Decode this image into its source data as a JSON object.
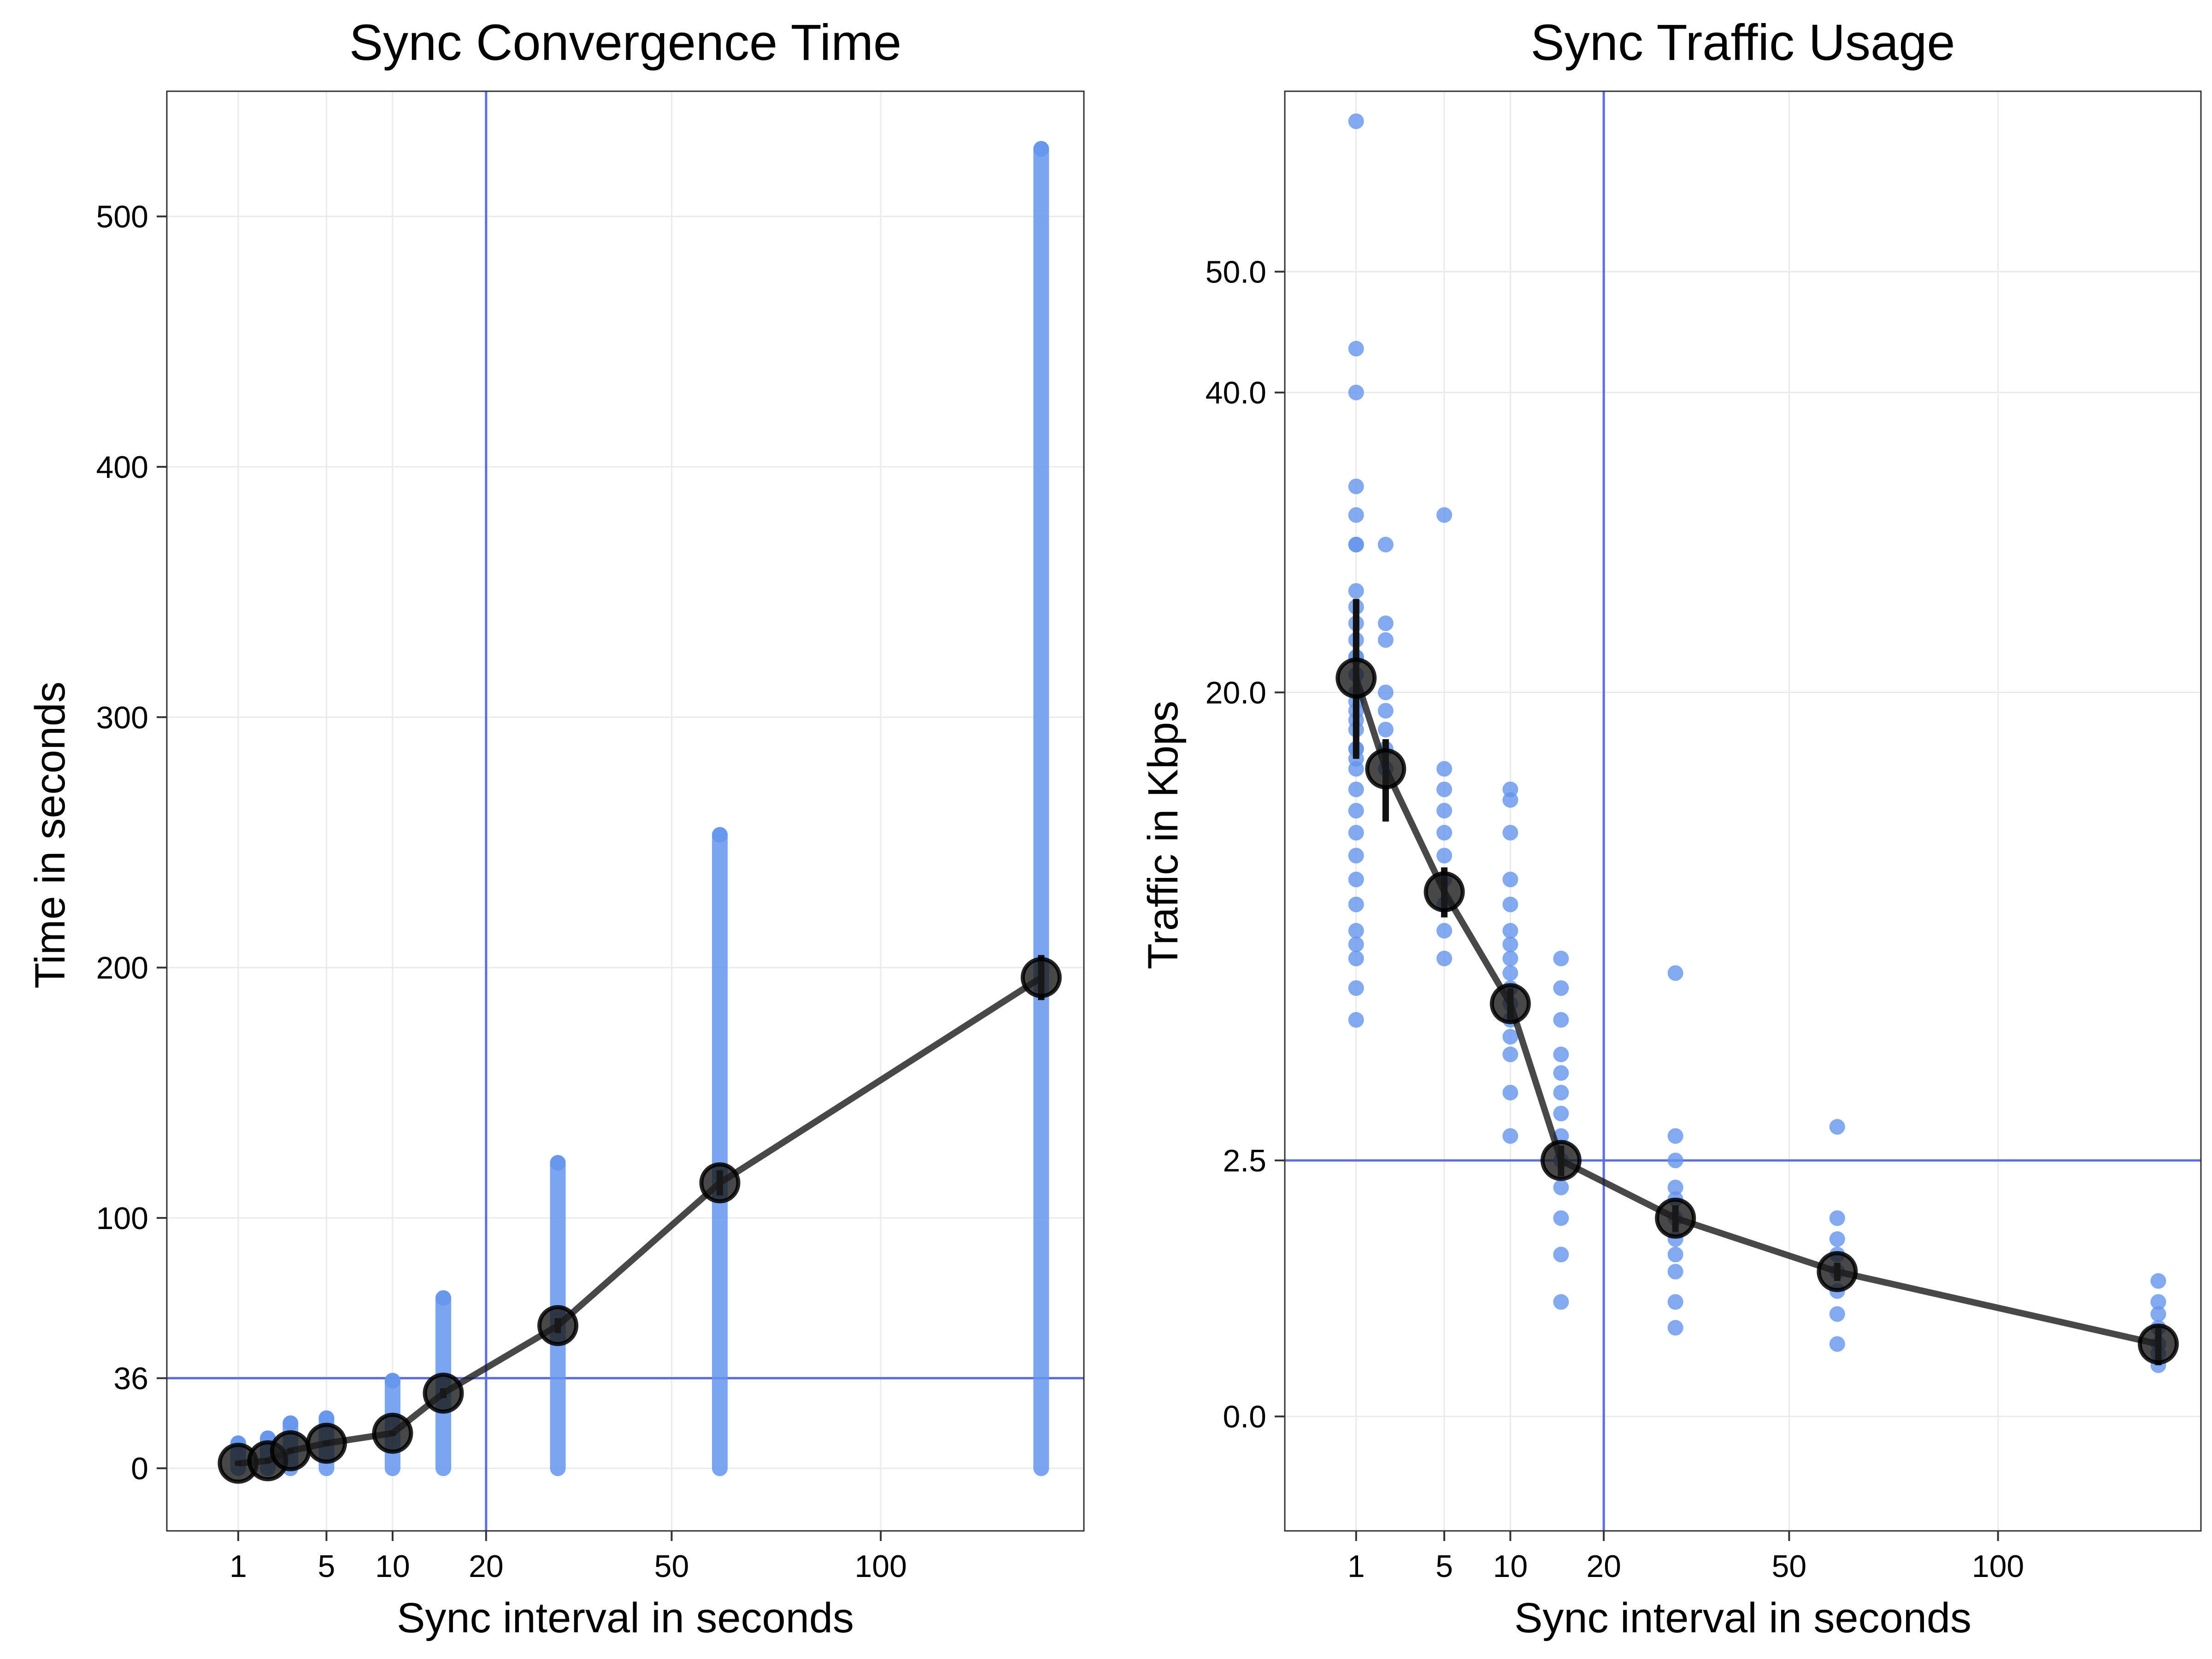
{
  "chart_data": [
    {
      "type": "scatter",
      "title": "Sync Convergence Time",
      "xlabel": "Sync interval in seconds",
      "ylabel": "Time in seconds",
      "xscale": "sqrt",
      "xlim": [
        0,
        165
      ],
      "ylim": [
        -25,
        550
      ],
      "x_ticks": [
        1,
        5,
        10,
        20,
        50,
        100
      ],
      "x_tick_labels": [
        "1",
        "5",
        "10",
        "20",
        "50",
        "100"
      ],
      "y_ticks": [
        0,
        36,
        100,
        200,
        300,
        400,
        500
      ],
      "y_tick_labels": [
        "0",
        "36",
        "100",
        "200",
        "300",
        "400",
        "500"
      ],
      "grid": true,
      "reference_lines": {
        "vertical_x": 20,
        "horizontal_y": 36,
        "color": "#5B6BEA"
      },
      "point_color": "#6495ED",
      "mean_color": "#1a1a1a",
      "series": [
        {
          "values": [
            {
              "x": 1,
              "min": 0,
              "max": 10
            },
            {
              "x": 2,
              "min": 0,
              "max": 12
            },
            {
              "x": 3,
              "min": 0,
              "max": 18
            },
            {
              "x": 5,
              "min": 0,
              "max": 20
            },
            {
              "x": 10,
              "min": 0,
              "max": 35
            },
            {
              "x": 15,
              "min": 0,
              "max": 68
            },
            {
              "x": 30,
              "min": 0,
              "max": 122
            },
            {
              "x": 60,
              "min": 0,
              "max": 253
            },
            {
              "x": 150,
              "min": 0,
              "max": 527
            }
          ]
        },
        {
          "values": [
            {
              "x": 1,
              "y": 2,
              "se": 1
            },
            {
              "x": 2,
              "y": 3,
              "se": 1
            },
            {
              "x": 3,
              "y": 7,
              "se": 1
            },
            {
              "x": 5,
              "y": 10,
              "se": 1
            },
            {
              "x": 10,
              "y": 14,
              "se": 1
            },
            {
              "x": 15,
              "y": 30,
              "se": 2
            },
            {
              "x": 30,
              "y": 57,
              "se": 3
            },
            {
              "x": 60,
              "y": 114,
              "se": 5
            },
            {
              "x": 150,
              "y": 196,
              "se": 9
            }
          ]
        }
      ]
    },
    {
      "type": "scatter",
      "title": "Sync Traffic Usage",
      "xlabel": "Sync interval in seconds",
      "ylabel": "Traffic in Kbps",
      "xscale": "sqrt",
      "yscale": "sqrt",
      "xlim": [
        0,
        165
      ],
      "ylim": [
        -0.5,
        67
      ],
      "x_ticks": [
        1,
        5,
        10,
        20,
        50,
        100
      ],
      "x_tick_labels": [
        "1",
        "5",
        "10",
        "20",
        "50",
        "100"
      ],
      "y_ticks": [
        0,
        2.5,
        20,
        40,
        50
      ],
      "y_tick_labels": [
        "0.0",
        "2.5",
        "20.0",
        "40.0",
        "50.0"
      ],
      "grid": true,
      "reference_lines": {
        "vertical_x": 20,
        "horizontal_y": 2.5,
        "color": "#5B6BEA"
      },
      "point_color": "#6495ED",
      "mean_color": "#1a1a1a",
      "series": [
        {
          "values": [
            {
              "x": 1,
              "points": [
                64,
                43.5,
                40,
                33,
                31,
                29,
                29,
                26,
                25,
                24,
                23,
                22,
                22,
                21,
                20,
                19.5,
                19,
                18.5,
                18,
                17,
                17,
                16.5,
                16,
                15,
                14,
                13,
                12,
                11,
                10,
                9,
                8.5,
                8,
                7,
                6
              ]
            },
            {
              "x": 2,
              "points": [
                29,
                24,
                23,
                20,
                19,
                18,
                17,
                16
              ]
            },
            {
              "x": 5,
              "points": [
                31,
                16,
                15,
                14,
                13,
                12,
                11,
                10,
                9,
                8
              ]
            },
            {
              "x": 10,
              "points": [
                15,
                14.5,
                13,
                11,
                10,
                9,
                8.5,
                8,
                7.5,
                7,
                6.5,
                6,
                5.5,
                5,
                4,
                3
              ]
            },
            {
              "x": 15,
              "points": [
                8,
                7,
                6,
                5,
                4.5,
                4,
                3.5,
                3,
                2.5,
                2,
                1.5,
                1,
                0.5
              ]
            },
            {
              "x": 30,
              "points": [
                7.5,
                3,
                2.5,
                2,
                1.8,
                1.5,
                1.2,
                1,
                0.8,
                0.5,
                0.3
              ]
            },
            {
              "x": 60,
              "points": [
                3.2,
                1.5,
                1.2,
                1,
                0.8,
                0.6,
                0.4,
                0.2
              ]
            },
            {
              "x": 150,
              "points": [
                0.7,
                0.5,
                0.4,
                0.3,
                0.2,
                0.15,
                0.1
              ]
            }
          ]
        },
        {
          "values": [
            {
              "x": 1,
              "y": 20.8,
              "lo": 16.5,
              "hi": 25.5
            },
            {
              "x": 2,
              "y": 16.0,
              "lo": 13.5,
              "hi": 17.5
            },
            {
              "x": 5,
              "y": 10.5,
              "lo": 9.5,
              "hi": 11.5
            },
            {
              "x": 10,
              "y": 6.5,
              "lo": 6.0,
              "hi": 7.0
            },
            {
              "x": 15,
              "y": 2.5,
              "lo": 2.2,
              "hi": 2.8
            },
            {
              "x": 30,
              "y": 1.5,
              "lo": 1.3,
              "hi": 1.7
            },
            {
              "x": 60,
              "y": 0.8,
              "lo": 0.7,
              "hi": 0.9
            },
            {
              "x": 150,
              "y": 0.2,
              "lo": 0.1,
              "hi": 0.3
            }
          ]
        }
      ]
    }
  ]
}
